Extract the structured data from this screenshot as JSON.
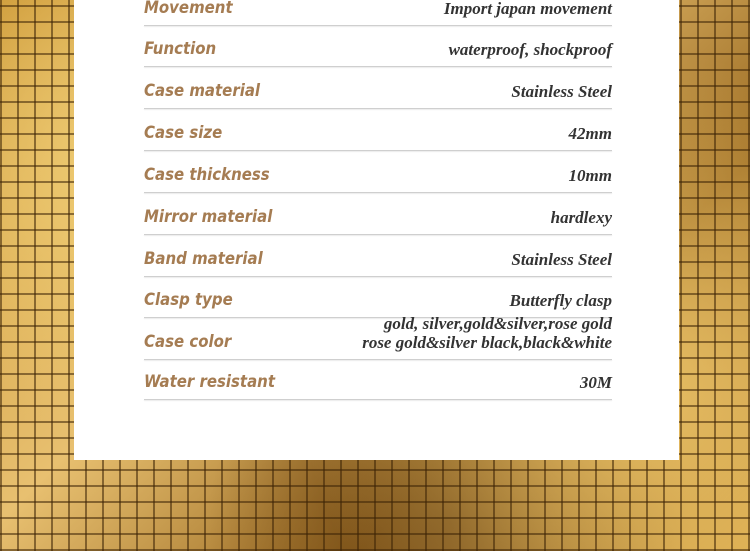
{
  "specs": [
    {
      "label": "Movement",
      "value": "Import japan movement"
    },
    {
      "label": "Function",
      "value": "waterproof, shockproof"
    },
    {
      "label": "Case material",
      "value": "Stainless Steel"
    },
    {
      "label": "Case size",
      "value": "42mm"
    },
    {
      "label": "Case thickness",
      "value": "10mm"
    },
    {
      "label": "Mirror material",
      "value": "hardlexy"
    },
    {
      "label": "Band material",
      "value": "Stainless Steel"
    },
    {
      "label": "Clasp type",
      "value": "Butterfly clasp"
    },
    {
      "label": "Case color",
      "value": "gold, silver,gold&silver,rose gold",
      "value2": "rose gold&silver black,black&white"
    },
    {
      "label": "Water resistant",
      "value": "30M"
    }
  ]
}
